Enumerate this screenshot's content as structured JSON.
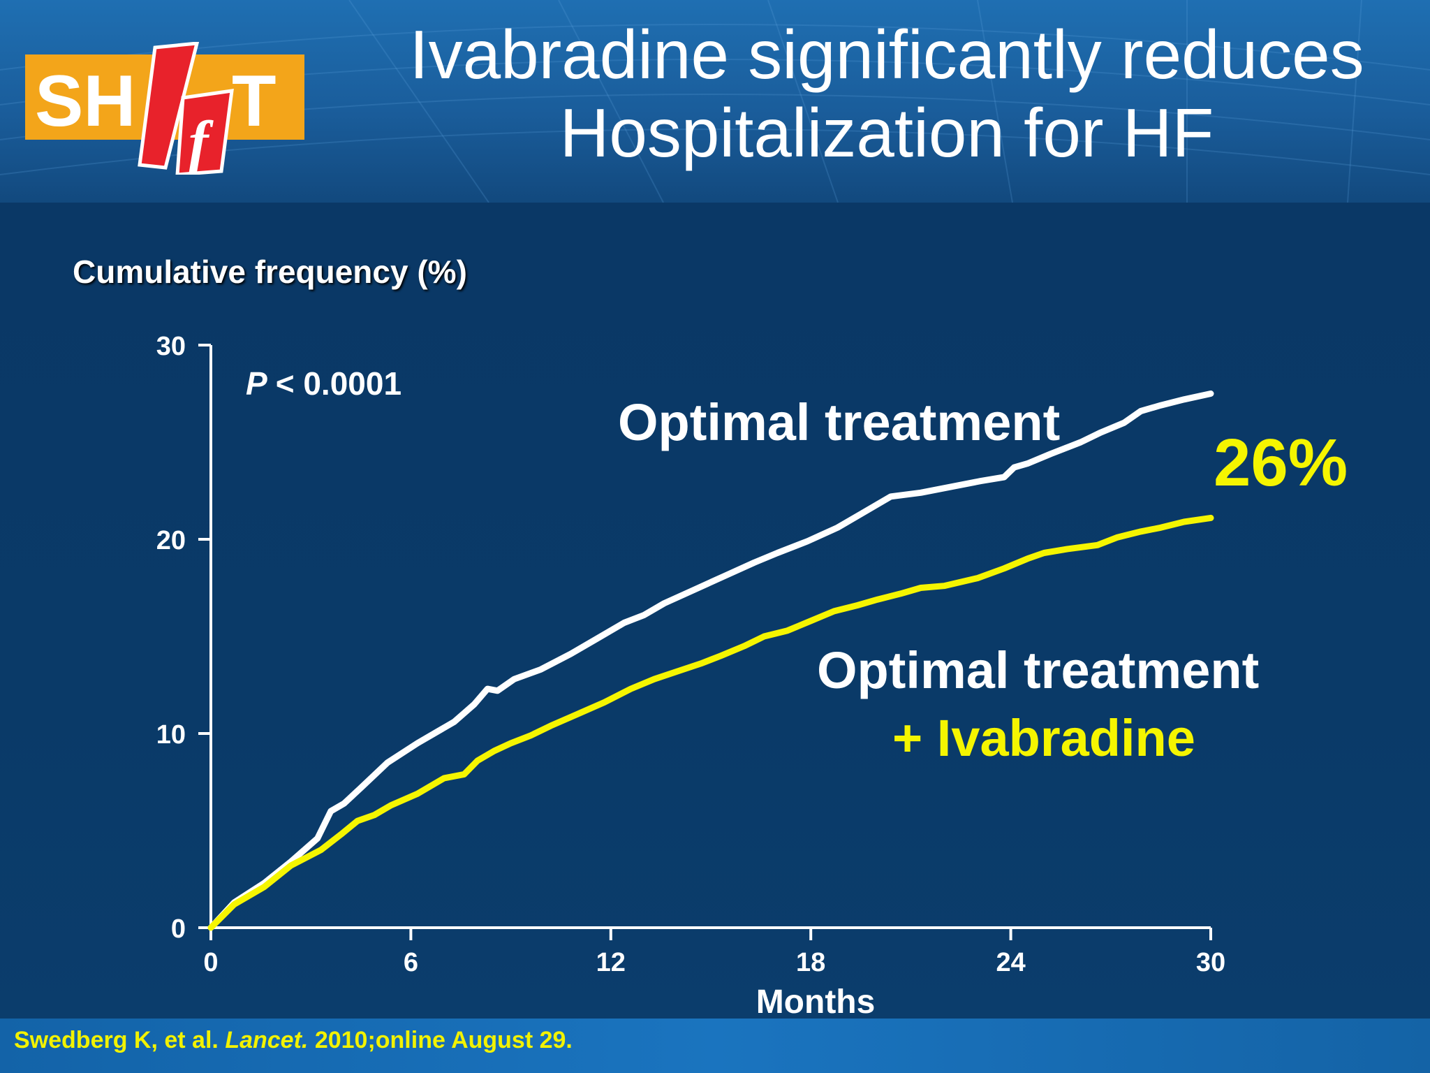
{
  "header": {
    "title_line1": "Ivabradine significantly reduces",
    "title_line2": "Hospitalization for HF",
    "logo_text": "SHIfT"
  },
  "colors": {
    "background": "#0a3866",
    "header": "#1a5d9b",
    "optimal_series": "#ffffff",
    "ivabradine_series": "#f5f500",
    "accent_yellow": "#f5f500",
    "logo_orange": "#f3a51a",
    "logo_red": "#e8222b"
  },
  "chart_data": {
    "type": "line",
    "ylabel": "Cumulative frequency (%)",
    "xlabel": "Months",
    "xlim": [
      0,
      30
    ],
    "ylim": [
      0,
      30
    ],
    "xticks": [
      0,
      6,
      12,
      18,
      24,
      30
    ],
    "yticks": [
      0,
      10,
      20,
      30
    ],
    "grid": false,
    "annotations": {
      "p_value_symbol": "P",
      "p_value_text": "< 0.0001",
      "reduction": "26%"
    },
    "series": [
      {
        "name": "Optimal treatment",
        "color": "#ffffff",
        "x": [
          0,
          0.7,
          1.6,
          2.4,
          3.2,
          3.6,
          4.0,
          4.5,
          5.3,
          6.2,
          6.8,
          7.3,
          7.9,
          8.3,
          8.6,
          9.1,
          9.9,
          10.8,
          11.6,
          12.4,
          13.0,
          13.6,
          14.5,
          15.4,
          16.3,
          17.0,
          17.9,
          18.8,
          19.5,
          20.4,
          21.3,
          22.2,
          23.1,
          23.8,
          24.1,
          24.5,
          25.2,
          26.1,
          26.7,
          27.4,
          27.9,
          28.5,
          29.2,
          30.0
        ],
        "y": [
          0,
          1.3,
          2.3,
          3.4,
          4.6,
          6.0,
          6.4,
          7.2,
          8.5,
          9.5,
          10.1,
          10.6,
          11.5,
          12.3,
          12.2,
          12.8,
          13.3,
          14.1,
          14.9,
          15.7,
          16.1,
          16.7,
          17.4,
          18.1,
          18.8,
          19.3,
          19.9,
          20.6,
          21.3,
          22.2,
          22.4,
          22.7,
          23.0,
          23.2,
          23.7,
          23.9,
          24.4,
          25.0,
          25.5,
          26.0,
          26.6,
          26.9,
          27.2,
          27.5
        ]
      },
      {
        "name": "Optimal treatment",
        "name_line2": "+ Ivabradine",
        "color": "#f5f500",
        "x": [
          0,
          0.7,
          1.6,
          2.4,
          3.3,
          3.9,
          4.4,
          4.9,
          5.4,
          6.2,
          7.0,
          7.6,
          8.0,
          8.5,
          9.0,
          9.6,
          10.2,
          11.0,
          11.8,
          12.6,
          13.3,
          14.0,
          14.7,
          15.3,
          16.0,
          16.6,
          17.3,
          18.0,
          18.7,
          19.4,
          20.0,
          20.7,
          21.3,
          22.0,
          23.0,
          23.8,
          24.5,
          25.0,
          25.7,
          26.6,
          27.2,
          27.9,
          28.5,
          29.2,
          30.0
        ],
        "y": [
          0,
          1.2,
          2.1,
          3.2,
          4.0,
          4.8,
          5.5,
          5.8,
          6.3,
          6.9,
          7.7,
          7.9,
          8.6,
          9.1,
          9.5,
          9.9,
          10.4,
          11.0,
          11.6,
          12.3,
          12.8,
          13.2,
          13.6,
          14.0,
          14.5,
          15.0,
          15.3,
          15.8,
          16.3,
          16.6,
          16.9,
          17.2,
          17.5,
          17.6,
          18.0,
          18.5,
          19.0,
          19.3,
          19.5,
          19.7,
          20.1,
          20.4,
          20.6,
          20.9,
          21.1
        ]
      }
    ]
  },
  "citation": {
    "authors": "Swedberg K, et al.",
    "journal": "Lancet.",
    "details": "2010;online August 29."
  }
}
